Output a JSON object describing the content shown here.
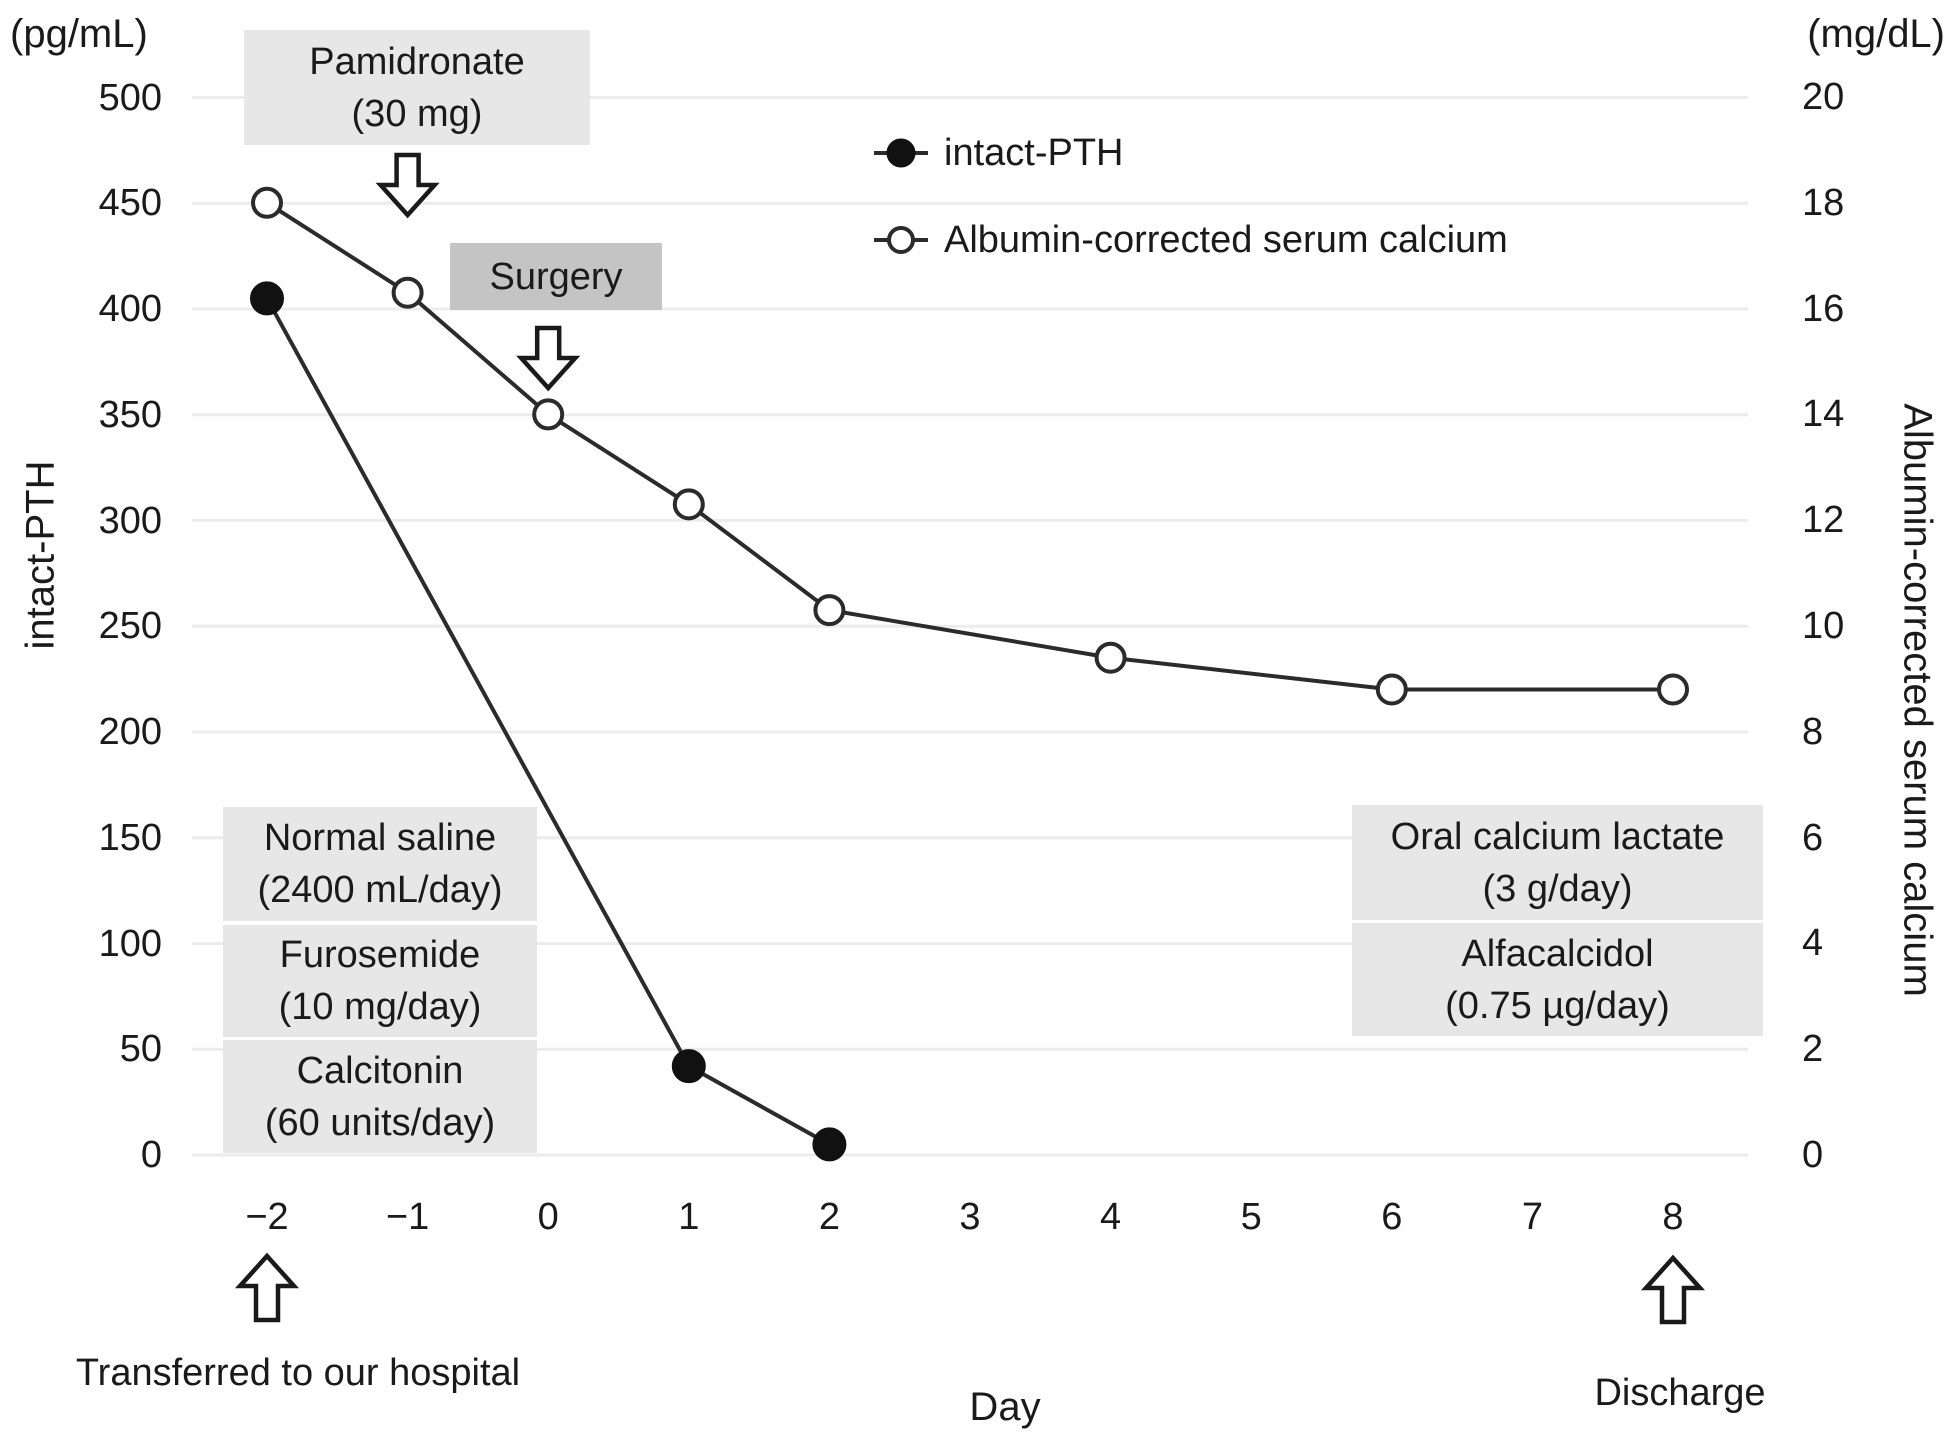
{
  "units": {
    "left": "(pg/mL)",
    "right": "(mg/dL)"
  },
  "axes": {
    "left_label": "intact-PTH",
    "right_label": "Albumin-corrected serum calcium",
    "x_label": "Day",
    "left_ticks": [
      500,
      450,
      400,
      350,
      300,
      250,
      200,
      150,
      100,
      50,
      0
    ],
    "right_ticks": [
      20,
      18,
      16,
      14,
      12,
      10,
      8,
      6,
      4,
      2,
      0
    ],
    "x_tick_labels": [
      "−2",
      "−1",
      "0",
      "1",
      "2",
      "3",
      "4",
      "5",
      "6",
      "7",
      "8"
    ],
    "x_tick_values": [
      -2,
      -1,
      0,
      1,
      2,
      3,
      4,
      5,
      6,
      7,
      8
    ]
  },
  "legend": [
    {
      "label": "intact-PTH",
      "marker": "filled-circle"
    },
    {
      "label": "Albumin-corrected serum calcium",
      "marker": "open-circle"
    }
  ],
  "annotations": {
    "pamidronate": {
      "line1": "Pamidronate",
      "line2": "(30 mg)"
    },
    "surgery": "Surgery",
    "transferred": "Transferred to our hospital",
    "discharge": "Discharge",
    "left_meds": [
      [
        "Normal saline",
        "(2400 mL/day)"
      ],
      [
        "Furosemide",
        "(10 mg/day)"
      ],
      [
        "Calcitonin",
        "(60 units/day)"
      ]
    ],
    "right_meds": [
      [
        "Oral calcium lactate",
        "(3 g/day)"
      ],
      [
        "Alfacalcidol",
        "(0.75 µg/day)"
      ]
    ]
  },
  "colors": {
    "line": "#2b2b2b",
    "marker_fill": "#111111",
    "grid": "#ececec",
    "box_light": "#e7e7e7",
    "box_dark": "#c4c4c4",
    "background": "#ffffff"
  },
  "chart_data": {
    "type": "line",
    "title": "",
    "x_label": "Day",
    "x_range": [
      -2,
      8
    ],
    "grid": "horizontal-only",
    "left_axis": {
      "label": "intact-PTH",
      "unit": "pg/mL",
      "range": [
        0,
        500
      ],
      "tick_step": 50
    },
    "right_axis": {
      "label": "Albumin-corrected serum calcium",
      "unit": "mg/dL",
      "range": [
        0,
        20
      ],
      "tick_step": 2
    },
    "series": [
      {
        "name": "intact-PTH",
        "axis": "left",
        "marker": "filled",
        "points": [
          [
            -2,
            405
          ],
          [
            1,
            42
          ],
          [
            2,
            5
          ]
        ]
      },
      {
        "name": "Albumin-corrected serum calcium",
        "axis": "right",
        "marker": "open",
        "points": [
          [
            -2,
            18.0
          ],
          [
            -1,
            16.3
          ],
          [
            0,
            14.0
          ],
          [
            1,
            12.3
          ],
          [
            2,
            10.3
          ],
          [
            4,
            9.4
          ],
          [
            6,
            8.8
          ],
          [
            8,
            8.8
          ]
        ]
      }
    ],
    "events": [
      {
        "label": "Pamidronate (30 mg)",
        "day": -1,
        "arrow": "down"
      },
      {
        "label": "Surgery",
        "day": 0,
        "arrow": "down"
      },
      {
        "label": "Transferred to our hospital",
        "day": -2,
        "arrow": "up"
      },
      {
        "label": "Discharge",
        "day": 8,
        "arrow": "up"
      }
    ],
    "treatments": [
      {
        "label": "Normal saline (2400 mL/day)",
        "days": [
          -2,
          0
        ]
      },
      {
        "label": "Furosemide (10 mg/day)",
        "days": [
          -2,
          0
        ]
      },
      {
        "label": "Calcitonin (60 units/day)",
        "days": [
          -2,
          0
        ]
      },
      {
        "label": "Oral calcium lactate (3 g/day)",
        "days": [
          6,
          8
        ]
      },
      {
        "label": "Alfacalcidol (0.75 µg/day)",
        "days": [
          6,
          8
        ]
      }
    ]
  }
}
